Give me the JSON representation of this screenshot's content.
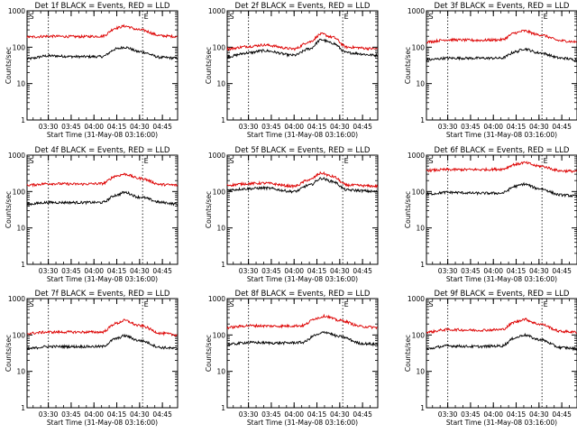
{
  "figure": {
    "x_axis_label": "Start Time (31-May-08 03:16:00)",
    "y_axis_label": "Counts/sec",
    "x_ticks": [
      {
        "label": "03:30",
        "time": "03:30"
      },
      {
        "label": "03:45",
        "time": "03:45"
      },
      {
        "label": "04:00",
        "time": "04:00"
      },
      {
        "label": "04:15",
        "time": "04:15"
      },
      {
        "label": "04:30",
        "time": "04:30"
      },
      {
        "label": "04:45",
        "time": "04:45"
      }
    ],
    "y_ticks": [
      {
        "label": "1",
        "value": 1
      },
      {
        "label": "10",
        "value": 10
      },
      {
        "label": "100",
        "value": 100
      },
      {
        "label": "1000",
        "value": 1000
      }
    ],
    "marker_labels": [
      "S",
      "E"
    ],
    "vline_times": [
      "03:30",
      "04:32"
    ],
    "colors": {
      "events": "#000000",
      "lld": "#dd0000"
    }
  },
  "chart_data": [
    {
      "type": "line",
      "title": "Det 1f BLACK = Events, RED = LLD",
      "xlim": [
        "03:16",
        "04:55"
      ],
      "ylim": [
        1,
        1000
      ],
      "yscale": "log",
      "series": [
        {
          "name": "Events",
          "color": "#000000",
          "x": [
            "03:16",
            "03:30",
            "03:50",
            "04:05",
            "04:15",
            "04:20",
            "04:30",
            "04:45",
            "04:55"
          ],
          "values": [
            48,
            58,
            55,
            55,
            90,
            100,
            75,
            52,
            50
          ]
        },
        {
          "name": "LLD",
          "color": "#dd0000",
          "x": [
            "03:16",
            "03:30",
            "03:50",
            "04:05",
            "04:15",
            "04:20",
            "04:30",
            "04:45",
            "04:55"
          ],
          "values": [
            190,
            200,
            195,
            200,
            340,
            380,
            300,
            205,
            195
          ]
        }
      ]
    },
    {
      "type": "line",
      "title": "Det 2f BLACK = Events, RED = LLD",
      "xlim": [
        "03:16",
        "04:55"
      ],
      "ylim": [
        1,
        1000
      ],
      "yscale": "log",
      "series": [
        {
          "name": "Events",
          "color": "#000000",
          "x": [
            "03:16",
            "03:30",
            "03:40",
            "04:00",
            "04:10",
            "04:18",
            "04:25",
            "04:35",
            "04:55"
          ],
          "values": [
            55,
            70,
            80,
            60,
            90,
            160,
            130,
            70,
            60
          ]
        },
        {
          "name": "LLD",
          "color": "#dd0000",
          "x": [
            "03:16",
            "03:30",
            "03:40",
            "04:00",
            "04:10",
            "04:18",
            "04:25",
            "04:35",
            "04:55"
          ],
          "values": [
            90,
            105,
            115,
            90,
            140,
            230,
            190,
            100,
            90
          ]
        }
      ]
    },
    {
      "type": "line",
      "title": "Det 3f BLACK = Events, RED = LLD",
      "xlim": [
        "03:16",
        "04:55"
      ],
      "ylim": [
        1,
        1000
      ],
      "yscale": "log",
      "series": [
        {
          "name": "Events",
          "color": "#000000",
          "x": [
            "03:16",
            "03:30",
            "03:50",
            "04:05",
            "04:15",
            "04:20",
            "04:30",
            "04:45",
            "04:55"
          ],
          "values": [
            45,
            50,
            50,
            50,
            75,
            90,
            70,
            50,
            45
          ]
        },
        {
          "name": "LLD",
          "color": "#dd0000",
          "x": [
            "03:16",
            "03:30",
            "03:50",
            "04:05",
            "04:15",
            "04:20",
            "04:30",
            "04:45",
            "04:55"
          ],
          "values": [
            140,
            160,
            155,
            160,
            250,
            280,
            220,
            150,
            140
          ]
        }
      ]
    },
    {
      "type": "line",
      "title": "Det 4f BLACK = Events, RED = LLD",
      "xlim": [
        "03:16",
        "04:55"
      ],
      "ylim": [
        1,
        1000
      ],
      "yscale": "log",
      "series": [
        {
          "name": "Events",
          "color": "#000000",
          "x": [
            "03:16",
            "03:30",
            "03:50",
            "04:05",
            "04:15",
            "04:20",
            "04:30",
            "04:45",
            "04:55"
          ],
          "values": [
            45,
            50,
            50,
            50,
            80,
            95,
            70,
            50,
            45
          ]
        },
        {
          "name": "LLD",
          "color": "#dd0000",
          "x": [
            "03:16",
            "03:30",
            "03:50",
            "04:05",
            "04:15",
            "04:20",
            "04:30",
            "04:45",
            "04:55"
          ],
          "values": [
            150,
            165,
            160,
            165,
            270,
            300,
            230,
            155,
            150
          ]
        }
      ]
    },
    {
      "type": "line",
      "title": "Det 5f BLACK = Events, RED = LLD",
      "xlim": [
        "03:16",
        "04:55"
      ],
      "ylim": [
        1,
        1000
      ],
      "yscale": "log",
      "series": [
        {
          "name": "Events",
          "color": "#000000",
          "x": [
            "03:16",
            "03:30",
            "03:40",
            "04:00",
            "04:10",
            "04:18",
            "04:25",
            "04:35",
            "04:55"
          ],
          "values": [
            110,
            120,
            125,
            100,
            150,
            230,
            190,
            110,
            100
          ]
        },
        {
          "name": "LLD",
          "color": "#dd0000",
          "x": [
            "03:16",
            "03:30",
            "03:40",
            "04:00",
            "04:10",
            "04:18",
            "04:25",
            "04:35",
            "04:55"
          ],
          "values": [
            150,
            165,
            170,
            140,
            210,
            320,
            260,
            150,
            140
          ]
        }
      ]
    },
    {
      "type": "line",
      "title": "Det 6f BLACK = Events, RED = LLD",
      "xlim": [
        "03:16",
        "04:55"
      ],
      "ylim": [
        1,
        1000
      ],
      "yscale": "log",
      "series": [
        {
          "name": "Events",
          "color": "#000000",
          "x": [
            "03:16",
            "03:30",
            "03:50",
            "04:05",
            "04:15",
            "04:20",
            "04:30",
            "04:45",
            "04:55"
          ],
          "values": [
            85,
            95,
            90,
            90,
            140,
            160,
            120,
            80,
            75
          ]
        },
        {
          "name": "LLD",
          "color": "#dd0000",
          "x": [
            "03:16",
            "03:30",
            "03:50",
            "04:05",
            "04:15",
            "04:20",
            "04:30",
            "04:45",
            "04:55"
          ],
          "values": [
            380,
            400,
            400,
            410,
            560,
            620,
            500,
            370,
            360
          ]
        }
      ]
    },
    {
      "type": "line",
      "title": "Det 7f BLACK = Events, RED = LLD",
      "xlim": [
        "03:16",
        "04:55"
      ],
      "ylim": [
        1,
        1000
      ],
      "yscale": "log",
      "series": [
        {
          "name": "Events",
          "color": "#000000",
          "x": [
            "03:16",
            "03:30",
            "03:50",
            "04:05",
            "04:15",
            "04:20",
            "04:30",
            "04:45",
            "04:55"
          ],
          "values": [
            42,
            48,
            48,
            48,
            80,
            95,
            70,
            45,
            42
          ]
        },
        {
          "name": "LLD",
          "color": "#dd0000",
          "x": [
            "03:16",
            "03:30",
            "03:50",
            "04:05",
            "04:15",
            "04:20",
            "04:30",
            "04:45",
            "04:55"
          ],
          "values": [
            110,
            120,
            120,
            120,
            210,
            250,
            180,
            110,
            100
          ]
        }
      ]
    },
    {
      "type": "line",
      "title": "Det 8f BLACK = Events, RED = LLD",
      "xlim": [
        "03:16",
        "04:55"
      ],
      "ylim": [
        1,
        1000
      ],
      "yscale": "log",
      "series": [
        {
          "name": "Events",
          "color": "#000000",
          "x": [
            "03:16",
            "03:30",
            "03:50",
            "04:05",
            "04:15",
            "04:20",
            "04:30",
            "04:45",
            "04:55"
          ],
          "values": [
            55,
            62,
            60,
            62,
            100,
            120,
            90,
            58,
            55
          ]
        },
        {
          "name": "LLD",
          "color": "#dd0000",
          "x": [
            "03:16",
            "03:30",
            "03:50",
            "04:05",
            "04:15",
            "04:20",
            "04:30",
            "04:45",
            "04:55"
          ],
          "values": [
            160,
            180,
            175,
            180,
            290,
            330,
            250,
            170,
            160
          ]
        }
      ]
    },
    {
      "type": "line",
      "title": "Det 9f BLACK = Events, RED = LLD",
      "xlim": [
        "03:16",
        "04:55"
      ],
      "ylim": [
        1,
        1000
      ],
      "yscale": "log",
      "series": [
        {
          "name": "Events",
          "color": "#000000",
          "x": [
            "03:16",
            "03:30",
            "03:50",
            "04:05",
            "04:15",
            "04:20",
            "04:30",
            "04:45",
            "04:55"
          ],
          "values": [
            42,
            50,
            48,
            50,
            85,
            100,
            75,
            45,
            42
          ]
        },
        {
          "name": "LLD",
          "color": "#dd0000",
          "x": [
            "03:16",
            "03:30",
            "03:50",
            "04:05",
            "04:15",
            "04:20",
            "04:30",
            "04:45",
            "04:55"
          ],
          "values": [
            120,
            140,
            135,
            140,
            230,
            270,
            200,
            125,
            120
          ]
        }
      ]
    }
  ]
}
